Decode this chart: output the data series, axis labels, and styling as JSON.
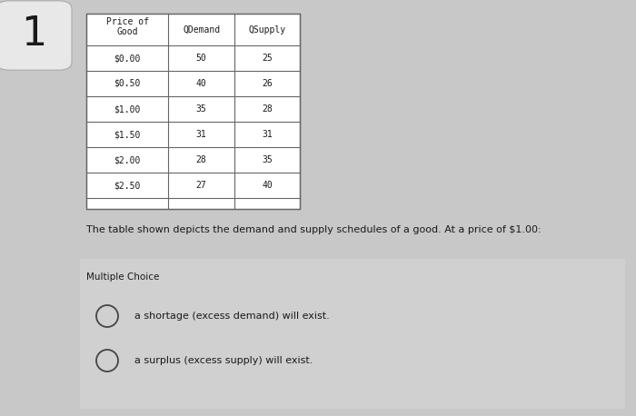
{
  "title_number": "1",
  "table_header_line1": "Price of",
  "table_header_line2": "Good",
  "col2_header": "QDemand",
  "col3_header": "QSupply",
  "table_data": [
    [
      "$0.00",
      "50",
      "25"
    ],
    [
      "$0.50",
      "40",
      "26"
    ],
    [
      "$1.00",
      "35",
      "28"
    ],
    [
      "$1.50",
      "31",
      "31"
    ],
    [
      "$2.00",
      "28",
      "35"
    ],
    [
      "$2.50",
      "27",
      "40"
    ]
  ],
  "description": "The table shown depicts the demand and supply schedules of a good. At a price of $1.00:",
  "section_label": "Multiple Choice",
  "choices": [
    "a shortage (excess demand) will exist.",
    "a surplus (excess supply) will exist."
  ],
  "bg_color": "#c8c8c8",
  "table_bg": "#ffffff",
  "mc_box_color": "#d0d0d0",
  "border_color": "#666666",
  "text_color": "#1a1a1a",
  "num_box_color": "#e8e8e8",
  "font_family": "monospace",
  "sans_family": "sans-serif"
}
